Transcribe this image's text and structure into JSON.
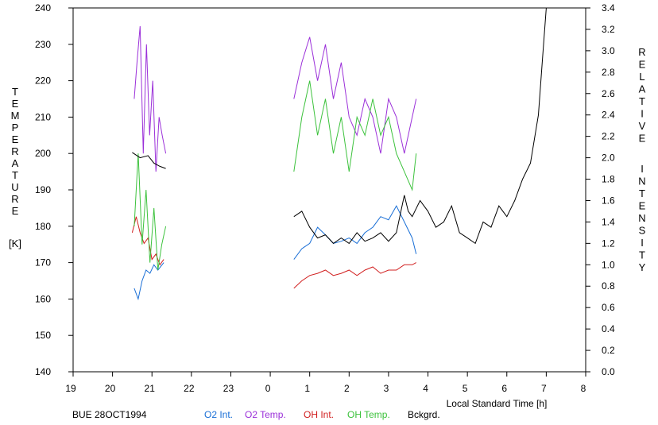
{
  "chart_data": {
    "type": "line",
    "title": "",
    "xlabel": "Local Standard Time [h]",
    "ylabel_left": "TEMPERATURE [K]",
    "ylabel_left_letters": [
      "T",
      "E",
      "M",
      "P",
      "E",
      "R",
      "A",
      "T",
      "U",
      "R",
      "E"
    ],
    "ylabel_left_unit": "[K]",
    "ylabel_right": "RELATIVE INTENSITY",
    "ylabel_right_letters_1": [
      "R",
      "E",
      "L",
      "A",
      "T",
      "I",
      "V",
      "E"
    ],
    "ylabel_right_letters_2": [
      "I",
      "N",
      "T",
      "E",
      "N",
      "S",
      "I",
      "T",
      "Y"
    ],
    "station_label": "BUE 28OCT1994",
    "x_tick_labels": [
      "19",
      "20",
      "21",
      "22",
      "23",
      "0",
      "1",
      "2",
      "3",
      "4",
      "5",
      "6",
      "7",
      "8"
    ],
    "x_range_hours_continuous": [
      19,
      32
    ],
    "ylim_left": [
      140,
      240
    ],
    "left_ticks": [
      140,
      150,
      160,
      170,
      180,
      190,
      200,
      210,
      220,
      230,
      240
    ],
    "ylim_right": [
      0.0,
      3.4
    ],
    "right_tick_labels": [
      "0.0",
      "0.2",
      "0.4",
      "0.6",
      "0.8",
      "1.0",
      "1.2",
      "1.4",
      "1.6",
      "1.8",
      "2.0",
      "2.2",
      "2.4",
      "2.6",
      "2.8",
      "3.0",
      "3.2",
      "3.4"
    ],
    "grid": false,
    "legend_position": "bottom",
    "series": [
      {
        "name": "O2 Int.",
        "axis": "right",
        "color": "#1a6fd6",
        "segments": [
          [
            [
              20.55,
              0.78
            ],
            [
              20.65,
              0.68
            ],
            [
              20.75,
              0.85
            ],
            [
              20.85,
              0.95
            ],
            [
              20.95,
              0.92
            ],
            [
              21.05,
              1.0
            ],
            [
              21.15,
              0.95
            ],
            [
              21.3,
              1.02
            ]
          ],
          [
            [
              24.6,
              1.05
            ],
            [
              24.8,
              1.15
            ],
            [
              25.0,
              1.2
            ],
            [
              25.2,
              1.35
            ],
            [
              25.4,
              1.28
            ],
            [
              25.6,
              1.2
            ],
            [
              25.8,
              1.22
            ],
            [
              26.0,
              1.25
            ],
            [
              26.2,
              1.2
            ],
            [
              26.4,
              1.3
            ],
            [
              26.6,
              1.35
            ],
            [
              26.8,
              1.45
            ],
            [
              27.0,
              1.42
            ],
            [
              27.2,
              1.55
            ],
            [
              27.4,
              1.4
            ],
            [
              27.6,
              1.25
            ],
            [
              27.7,
              1.1
            ]
          ]
        ]
      },
      {
        "name": "O2 Temp.",
        "axis": "left",
        "color": "#9b30d9",
        "segments": [
          [
            [
              20.55,
              215
            ],
            [
              20.62,
              225
            ],
            [
              20.7,
              235
            ],
            [
              20.78,
              200
            ],
            [
              20.86,
              230
            ],
            [
              20.94,
              205
            ],
            [
              21.02,
              220
            ],
            [
              21.1,
              195
            ],
            [
              21.18,
              210
            ],
            [
              21.26,
              205
            ],
            [
              21.35,
              200
            ]
          ],
          [
            [
              24.6,
              215
            ],
            [
              24.8,
              225
            ],
            [
              25.0,
              232
            ],
            [
              25.2,
              220
            ],
            [
              25.4,
              230
            ],
            [
              25.6,
              215
            ],
            [
              25.8,
              225
            ],
            [
              26.0,
              210
            ],
            [
              26.2,
              205
            ],
            [
              26.4,
              215
            ],
            [
              26.6,
              210
            ],
            [
              26.8,
              200
            ],
            [
              27.0,
              215
            ],
            [
              27.2,
              210
            ],
            [
              27.4,
              200
            ],
            [
              27.6,
              210
            ],
            [
              27.7,
              215
            ]
          ]
        ]
      },
      {
        "name": "OH Int.",
        "axis": "right",
        "color": "#d11f1f",
        "segments": [
          [
            [
              20.5,
              1.3
            ],
            [
              20.6,
              1.45
            ],
            [
              20.7,
              1.3
            ],
            [
              20.8,
              1.2
            ],
            [
              20.9,
              1.25
            ],
            [
              21.0,
              1.05
            ],
            [
              21.1,
              1.1
            ],
            [
              21.2,
              1.0
            ],
            [
              21.3,
              1.05
            ]
          ],
          [
            [
              24.6,
              0.78
            ],
            [
              24.8,
              0.85
            ],
            [
              25.0,
              0.9
            ],
            [
              25.2,
              0.92
            ],
            [
              25.4,
              0.95
            ],
            [
              25.6,
              0.9
            ],
            [
              25.8,
              0.92
            ],
            [
              26.0,
              0.95
            ],
            [
              26.2,
              0.9
            ],
            [
              26.4,
              0.95
            ],
            [
              26.6,
              0.98
            ],
            [
              26.8,
              0.92
            ],
            [
              27.0,
              0.95
            ],
            [
              27.2,
              0.95
            ],
            [
              27.4,
              1.0
            ],
            [
              27.6,
              1.0
            ],
            [
              27.7,
              1.02
            ]
          ]
        ]
      },
      {
        "name": "OH Temp.",
        "axis": "left",
        "color": "#3cc23c",
        "segments": [
          [
            [
              20.55,
              180
            ],
            [
              20.65,
              200
            ],
            [
              20.75,
              175
            ],
            [
              20.85,
              190
            ],
            [
              20.95,
              170
            ],
            [
              21.05,
              185
            ],
            [
              21.15,
              168
            ],
            [
              21.25,
              175
            ],
            [
              21.35,
              180
            ]
          ],
          [
            [
              24.6,
              195
            ],
            [
              24.8,
              210
            ],
            [
              25.0,
              220
            ],
            [
              25.2,
              205
            ],
            [
              25.4,
              215
            ],
            [
              25.6,
              200
            ],
            [
              25.8,
              210
            ],
            [
              26.0,
              195
            ],
            [
              26.2,
              210
            ],
            [
              26.4,
              205
            ],
            [
              26.6,
              215
            ],
            [
              26.8,
              205
            ],
            [
              27.0,
              210
            ],
            [
              27.2,
              200
            ],
            [
              27.4,
              195
            ],
            [
              27.6,
              190
            ],
            [
              27.7,
              200
            ]
          ]
        ]
      },
      {
        "name": "Bckgrd.",
        "axis": "right",
        "color": "#000000",
        "segments": [
          [
            [
              20.5,
              2.05
            ],
            [
              20.7,
              2.0
            ],
            [
              20.9,
              2.02
            ],
            [
              21.05,
              1.95
            ],
            [
              21.2,
              1.92
            ],
            [
              21.35,
              1.9
            ]
          ],
          [
            [
              24.6,
              1.45
            ],
            [
              24.8,
              1.5
            ],
            [
              25.0,
              1.35
            ],
            [
              25.2,
              1.25
            ],
            [
              25.4,
              1.28
            ],
            [
              25.6,
              1.2
            ],
            [
              25.8,
              1.25
            ],
            [
              26.0,
              1.2
            ],
            [
              26.2,
              1.3
            ],
            [
              26.4,
              1.22
            ],
            [
              26.6,
              1.25
            ],
            [
              26.8,
              1.3
            ],
            [
              27.0,
              1.22
            ],
            [
              27.2,
              1.3
            ],
            [
              27.4,
              1.65
            ],
            [
              27.5,
              1.5
            ],
            [
              27.6,
              1.45
            ],
            [
              27.8,
              1.6
            ],
            [
              28.0,
              1.5
            ],
            [
              28.2,
              1.35
            ],
            [
              28.4,
              1.4
            ],
            [
              28.6,
              1.55
            ],
            [
              28.8,
              1.3
            ],
            [
              29.0,
              1.25
            ],
            [
              29.2,
              1.2
            ],
            [
              29.4,
              1.4
            ],
            [
              29.6,
              1.35
            ],
            [
              29.8,
              1.55
            ],
            [
              30.0,
              1.45
            ],
            [
              30.2,
              1.6
            ],
            [
              30.4,
              1.8
            ],
            [
              30.6,
              1.95
            ],
            [
              30.8,
              2.4
            ],
            [
              30.9,
              2.9
            ],
            [
              31.0,
              3.4
            ]
          ]
        ]
      }
    ]
  }
}
